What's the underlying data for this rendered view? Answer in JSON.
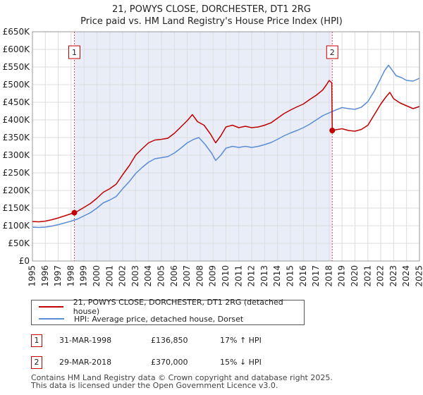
{
  "chart_data": {
    "type": "line",
    "title": "21, POWYS CLOSE, DORCHESTER, DT1 2RG",
    "subtitle": "Price paid vs. HM Land Registry's House Price Index (HPI)",
    "xlim": [
      1995,
      2025
    ],
    "ylim": [
      0,
      650000
    ],
    "y_ticks": [
      0,
      50000,
      100000,
      150000,
      200000,
      250000,
      300000,
      350000,
      400000,
      450000,
      500000,
      550000,
      600000,
      650000
    ],
    "y_tick_labels": [
      "£0",
      "£50K",
      "£100K",
      "£150K",
      "£200K",
      "£250K",
      "£300K",
      "£350K",
      "£400K",
      "£450K",
      "£500K",
      "£550K",
      "£600K",
      "£650K"
    ],
    "x_ticks": [
      1995,
      1996,
      1997,
      1998,
      1999,
      2000,
      2001,
      2002,
      2003,
      2004,
      2005,
      2006,
      2007,
      2008,
      2009,
      2010,
      2011,
      2012,
      2013,
      2014,
      2015,
      2016,
      2017,
      2018,
      2019,
      2020,
      2021,
      2022,
      2023,
      2024,
      2025
    ],
    "grid": true,
    "shaded_period": [
      1998.25,
      2018.24
    ],
    "series": [
      {
        "name": "21, POWYS CLOSE, DORCHESTER, DT1 2RG (detached house)",
        "color": "#c00000",
        "x": [
          1995.0,
          1995.5,
          1996.0,
          1996.5,
          1997.0,
          1997.5,
          1998.0,
          1998.25,
          1998.5,
          1999.0,
          1999.5,
          2000.0,
          2000.5,
          2001.0,
          2001.5,
          2002.0,
          2002.5,
          2003.0,
          2003.5,
          2004.0,
          2004.5,
          2005.0,
          2005.5,
          2006.0,
          2006.5,
          2007.0,
          2007.4,
          2007.8,
          2008.3,
          2008.8,
          2009.2,
          2009.6,
          2010.0,
          2010.5,
          2011.0,
          2011.5,
          2012.0,
          2012.5,
          2013.0,
          2013.5,
          2014.0,
          2014.5,
          2015.0,
          2015.5,
          2016.0,
          2016.5,
          2017.0,
          2017.5,
          2017.8,
          2018.0,
          2018.2,
          2018.24,
          2018.5,
          2019.0,
          2019.5,
          2020.0,
          2020.5,
          2021.0,
          2021.5,
          2022.0,
          2022.4,
          2022.7,
          2023.0,
          2023.5,
          2024.0,
          2024.5,
          2025.0
        ],
        "values": [
          112000,
          111000,
          113000,
          117000,
          122000,
          128000,
          134000,
          136850,
          141000,
          152000,
          163000,
          178000,
          195000,
          205000,
          218000,
          245000,
          270000,
          300000,
          318000,
          335000,
          343000,
          345000,
          348000,
          362000,
          380000,
          398000,
          415000,
          395000,
          385000,
          360000,
          335000,
          355000,
          380000,
          385000,
          378000,
          382000,
          378000,
          380000,
          385000,
          392000,
          405000,
          418000,
          428000,
          437000,
          445000,
          458000,
          470000,
          485000,
          500000,
          512000,
          505000,
          370000,
          372000,
          375000,
          370000,
          368000,
          373000,
          385000,
          415000,
          445000,
          465000,
          478000,
          460000,
          448000,
          440000,
          432000,
          438000
        ]
      },
      {
        "name": "HPI: Average price, detached house, Dorset",
        "color": "#5b8cd6",
        "x": [
          1995.0,
          1995.5,
          1996.0,
          1996.5,
          1997.0,
          1997.5,
          1998.0,
          1998.5,
          1999.0,
          1999.5,
          2000.0,
          2000.5,
          2001.0,
          2001.5,
          2002.0,
          2002.5,
          2003.0,
          2003.5,
          2004.0,
          2004.5,
          2005.0,
          2005.5,
          2006.0,
          2006.5,
          2007.0,
          2007.5,
          2007.9,
          2008.4,
          2008.9,
          2009.2,
          2009.6,
          2010.0,
          2010.5,
          2011.0,
          2011.5,
          2012.0,
          2012.5,
          2013.0,
          2013.5,
          2014.0,
          2014.5,
          2015.0,
          2015.5,
          2016.0,
          2016.5,
          2017.0,
          2017.5,
          2018.0,
          2018.5,
          2019.0,
          2019.5,
          2020.0,
          2020.5,
          2021.0,
          2021.5,
          2022.0,
          2022.3,
          2022.6,
          2022.9,
          2023.2,
          2023.6,
          2024.0,
          2024.5,
          2025.0
        ],
        "values": [
          96000,
          95000,
          96000,
          99000,
          103000,
          108000,
          113000,
          119000,
          128000,
          137000,
          150000,
          165000,
          173000,
          183000,
          205000,
          225000,
          248000,
          265000,
          280000,
          290000,
          293000,
          296000,
          306000,
          320000,
          335000,
          345000,
          350000,
          330000,
          305000,
          285000,
          300000,
          320000,
          325000,
          322000,
          325000,
          322000,
          325000,
          330000,
          336000,
          345000,
          355000,
          363000,
          370000,
          378000,
          388000,
          400000,
          412000,
          420000,
          428000,
          435000,
          432000,
          430000,
          436000,
          452000,
          482000,
          518000,
          540000,
          555000,
          540000,
          525000,
          520000,
          512000,
          510000,
          518000
        ]
      }
    ],
    "markers": [
      {
        "label": "1",
        "x": 1998.25,
        "value": 136850
      },
      {
        "label": "2",
        "x": 2018.24,
        "value": 370000
      }
    ]
  },
  "legend": {
    "items": [
      {
        "label": "21, POWYS CLOSE, DORCHESTER, DT1 2RG (detached house)",
        "color": "#c00000"
      },
      {
        "label": "HPI: Average price, detached house, Dorset",
        "color": "#5b8cd6"
      }
    ]
  },
  "annotations": [
    {
      "label": "1",
      "date": "31-MAR-1998",
      "price": "£136,850",
      "hpi": "17% ↑ HPI"
    },
    {
      "label": "2",
      "date": "29-MAR-2018",
      "price": "£370,000",
      "hpi": "15% ↓ HPI"
    }
  ],
  "footer": {
    "line1": "Contains HM Land Registry data © Crown copyright and database right 2025.",
    "line2": "This data is licensed under the Open Government Licence v3.0."
  }
}
